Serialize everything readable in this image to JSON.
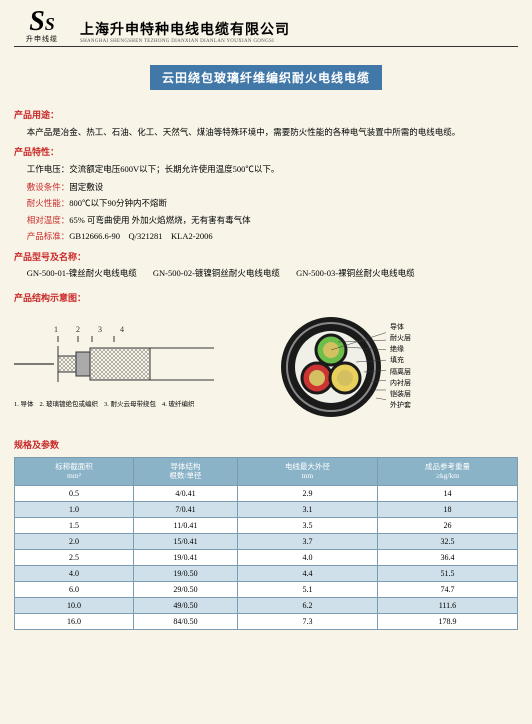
{
  "header": {
    "logo_big": "S",
    "logo_small": "S",
    "logo_sub": "升申线缆",
    "company_cn": "上海升申特种电线电缆有限公司",
    "company_en": "SHANGHAI SHENGSHEN TEZHONG DIANXIAN DIANLAN YOUXIAN GONGSI"
  },
  "title": "云田绕包玻璃纤维编织耐火电线电缆",
  "sections": {
    "usage_h": "产品用途：",
    "usage": "本产品是冶金、热工、石油、化工、天然气、煤油等特殊环境中，需要防火性能的各种电气装置中所需的电线电缆。",
    "features_h": "产品特性：",
    "features": "工作电压：交流额定电压600V以下；长期允许使用温度500℃以下。",
    "laying_h": "敷设条件：",
    "laying": "固定敷设",
    "fire_h": "耐火性能：",
    "fire": "800℃以下90分钟内不熔断",
    "temp_h": "相对温度：",
    "temp": "65% 可弯曲使用 外加火焰燃烧，无有害有毒气体",
    "std_h": "产品标准：",
    "std": "GB12666.6-90　Q/321281　KLA2-2006",
    "model_h": "产品型号及名称：",
    "struct_h": "产品结构示意图：",
    "spec_h": "规格及参数"
  },
  "models": [
    "GN-500-01-镍丝耐火电线电缆",
    "GN-500-02-镀镍铜丝耐火电线电缆",
    "GN-500-03-裸铜丝耐火电线电缆"
  ],
  "diagram1": {
    "nums": [
      "1",
      "2",
      "3",
      "4"
    ],
    "caps": [
      "1. 导体",
      "2. 玻璃镀绝包或编织",
      "3. 耐火云母带绕包",
      "4. 玻纤编织"
    ]
  },
  "legend": [
    "导体",
    "耐火层",
    "绝缘",
    "填充",
    "隔离层",
    "内衬层",
    "铠装层",
    "外护套"
  ],
  "cross_colors": {
    "outer": "#1a1a1a",
    "ring": "#888",
    "core1": "#6bbf4a",
    "core2": "#cc3333",
    "core3": "#e8d05a",
    "inner": "#f0f0e8"
  },
  "table": {
    "headers": [
      {
        "l1": "标称截面积",
        "l2": "mm²"
      },
      {
        "l1": "导体结构",
        "l2": "根数/单径"
      },
      {
        "l1": "电线最大外径",
        "l2": "mm"
      },
      {
        "l1": "成品参考重量",
        "l2": "≥kg/km"
      }
    ],
    "rows": [
      [
        "0.5",
        "4/0.41",
        "2.9",
        "14"
      ],
      [
        "1.0",
        "7/0.41",
        "3.1",
        "18"
      ],
      [
        "1.5",
        "11/0.41",
        "3.5",
        "26"
      ],
      [
        "2.0",
        "15/0.41",
        "3.7",
        "32.5"
      ],
      [
        "2.5",
        "19/0.41",
        "4.0",
        "36.4"
      ],
      [
        "4.0",
        "19/0.50",
        "4.4",
        "51.5"
      ],
      [
        "6.0",
        "29/0.50",
        "5.1",
        "74.7"
      ],
      [
        "10.0",
        "49/0.50",
        "6.2",
        "111.6"
      ],
      [
        "16.0",
        "84/0.50",
        "7.3",
        "178.9"
      ]
    ]
  }
}
